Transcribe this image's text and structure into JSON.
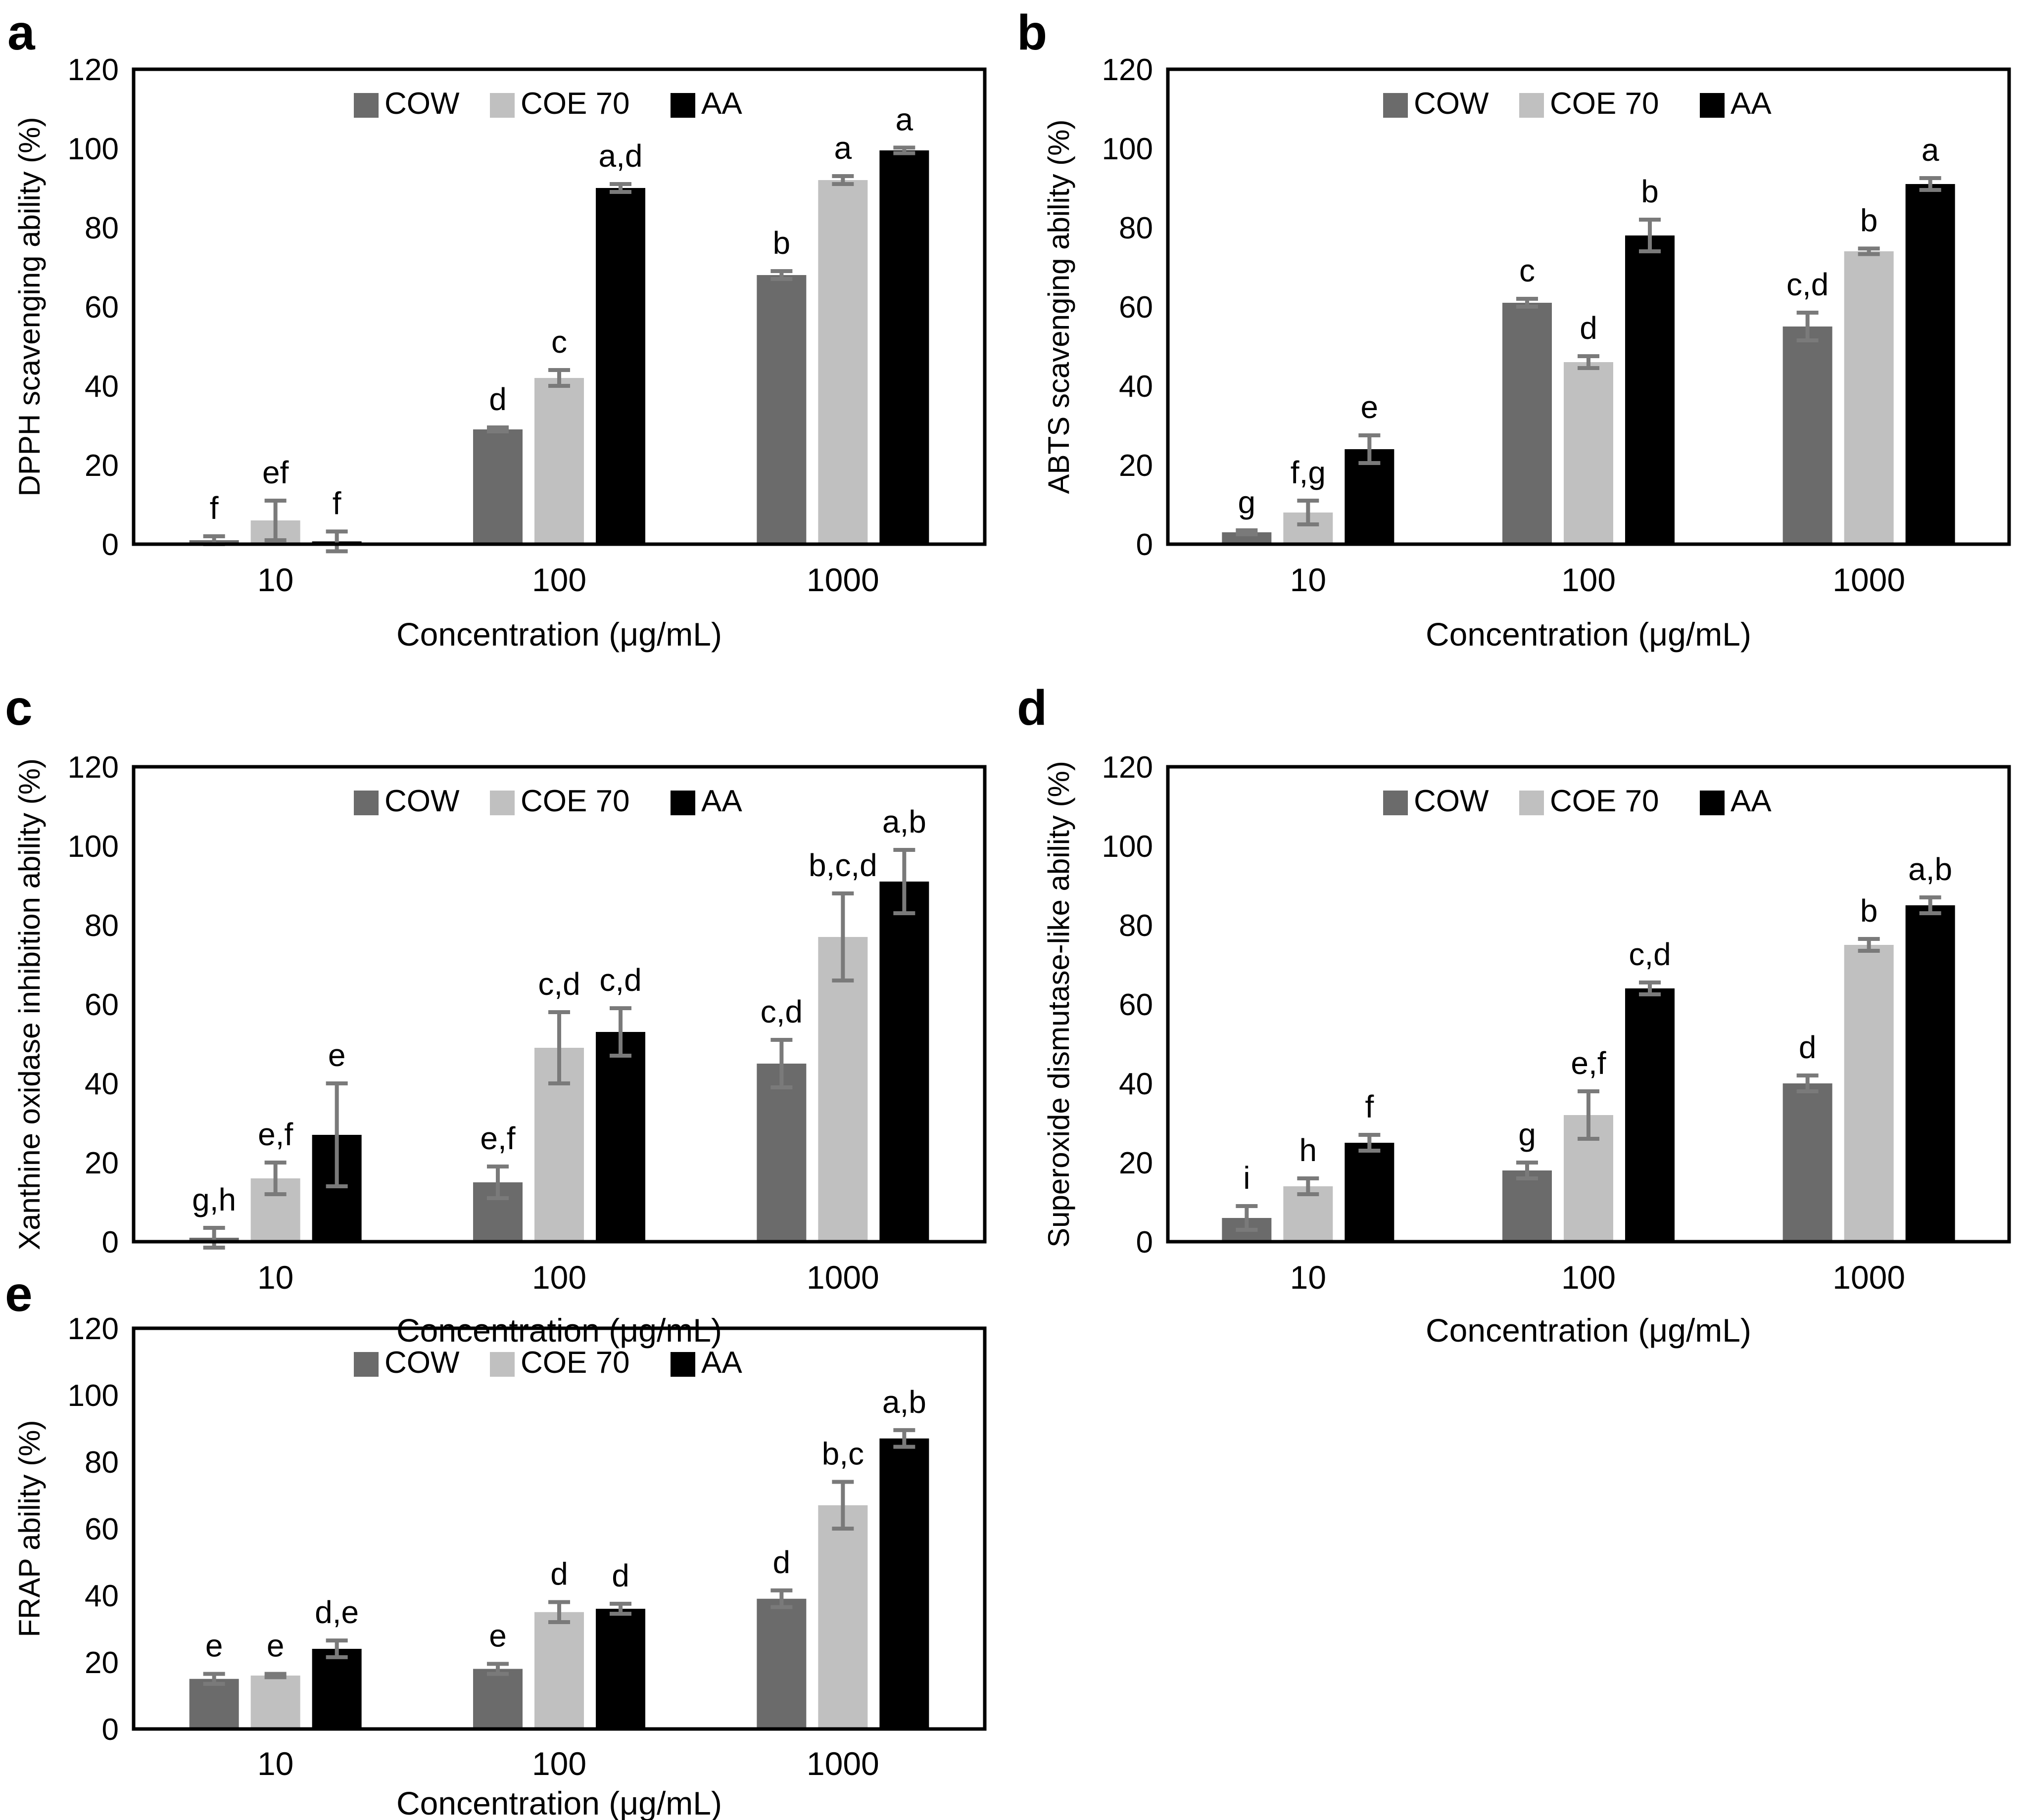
{
  "figure_title": "",
  "series_legend": {
    "position": "top-center-inside",
    "items": [
      {
        "label": "COW",
        "color": "#6b6b6b"
      },
      {
        "label": "COE 70",
        "color": "#c0c0c0"
      },
      {
        "label": "AA",
        "color": "#000000"
      }
    ]
  },
  "error_bar_color": "#7a7a7a",
  "chart_data": [
    {
      "panel": "a",
      "type": "bar",
      "ylabel": "DPPH scavenging ability (%)",
      "xlabel": "Concentration (μg/mL)",
      "categories": [
        "10",
        "100",
        "1000"
      ],
      "ylim": [
        0,
        120
      ],
      "yticks": [
        0,
        20,
        40,
        60,
        80,
        100,
        120
      ],
      "grid": false,
      "legend_position": "top-center",
      "series": [
        {
          "name": "COW",
          "color": "#6b6b6b",
          "values": [
            1,
            29,
            68
          ],
          "errors": [
            1,
            0.5,
            1
          ],
          "letters": [
            "f",
            "d",
            "b"
          ]
        },
        {
          "name": "COE 70",
          "color": "#c0c0c0",
          "values": [
            6,
            42,
            92
          ],
          "errors": [
            5,
            2,
            1
          ],
          "letters": [
            "ef",
            "c",
            "a"
          ]
        },
        {
          "name": "AA",
          "color": "#000000",
          "values": [
            0.7,
            90,
            99.5
          ],
          "errors": [
            2.5,
            1,
            0.7
          ],
          "letters": [
            "f",
            "a,d",
            "a"
          ]
        }
      ]
    },
    {
      "panel": "b",
      "type": "bar",
      "ylabel": "ABTS scavenging ability (%)",
      "xlabel": "Concentration (μg/mL)",
      "categories": [
        "10",
        "100",
        "1000"
      ],
      "ylim": [
        0,
        120
      ],
      "yticks": [
        0,
        20,
        40,
        60,
        80,
        100,
        120
      ],
      "grid": false,
      "legend_position": "top-center",
      "series": [
        {
          "name": "COW",
          "color": "#6b6b6b",
          "values": [
            3,
            61,
            55
          ],
          "errors": [
            0.5,
            1,
            3.5
          ],
          "letters": [
            "g",
            "c",
            "c,d"
          ]
        },
        {
          "name": "COE 70",
          "color": "#c0c0c0",
          "values": [
            8,
            46,
            74
          ],
          "errors": [
            3,
            1.5,
            0.7
          ],
          "letters": [
            "f,g",
            "d",
            "b"
          ]
        },
        {
          "name": "AA",
          "color": "#000000",
          "values": [
            24,
            78,
            91
          ],
          "errors": [
            3.5,
            4,
            1.5
          ],
          "letters": [
            "e",
            "b",
            "a"
          ]
        }
      ]
    },
    {
      "panel": "c",
      "type": "bar",
      "ylabel": "Xanthine oxidase inhibition ability (%)",
      "xlabel": "Concentration (μg/mL)",
      "categories": [
        "10",
        "100",
        "1000"
      ],
      "ylim": [
        0,
        120
      ],
      "yticks": [
        0,
        20,
        40,
        60,
        80,
        100,
        120
      ],
      "grid": false,
      "legend_position": "top-center",
      "series": [
        {
          "name": "COW",
          "color": "#6b6b6b",
          "values": [
            1,
            15,
            45
          ],
          "errors": [
            2.5,
            4,
            6
          ],
          "letters": [
            "g,h",
            "e,f",
            "c,d"
          ]
        },
        {
          "name": "COE 70",
          "color": "#c0c0c0",
          "values": [
            16,
            49,
            77
          ],
          "errors": [
            4,
            9,
            11
          ],
          "letters": [
            "e,f",
            "c,d",
            "b,c,d"
          ]
        },
        {
          "name": "AA",
          "color": "#000000",
          "values": [
            27,
            53,
            91
          ],
          "errors": [
            13,
            6,
            8
          ],
          "letters": [
            "e",
            "c,d",
            "a,b"
          ]
        }
      ]
    },
    {
      "panel": "d",
      "type": "bar",
      "ylabel": "Superoxide dismutase-like ability (%)",
      "xlabel": "Concentration (μg/mL)",
      "categories": [
        "10",
        "100",
        "1000"
      ],
      "ylim": [
        0,
        120
      ],
      "yticks": [
        0,
        20,
        40,
        60,
        80,
        100,
        120
      ],
      "grid": false,
      "legend_position": "top-center",
      "series": [
        {
          "name": "COW",
          "color": "#6b6b6b",
          "values": [
            6,
            18,
            40
          ],
          "errors": [
            3,
            2,
            2
          ],
          "letters": [
            "i",
            "g",
            "d"
          ]
        },
        {
          "name": "COE 70",
          "color": "#c0c0c0",
          "values": [
            14,
            32,
            75
          ],
          "errors": [
            2,
            6,
            1.5
          ],
          "letters": [
            "h",
            "e,f",
            "b"
          ]
        },
        {
          "name": "AA",
          "color": "#000000",
          "values": [
            25,
            64,
            85
          ],
          "errors": [
            2,
            1.5,
            2
          ],
          "letters": [
            "f",
            "c,d",
            "a,b"
          ]
        }
      ]
    },
    {
      "panel": "e",
      "type": "bar",
      "ylabel": "FRAP ability (%)",
      "xlabel": "Concentration (μg/mL)",
      "categories": [
        "10",
        "100",
        "1000"
      ],
      "ylim": [
        0,
        120
      ],
      "yticks": [
        0,
        20,
        40,
        60,
        80,
        100,
        120
      ],
      "grid": false,
      "legend_position": "top-center",
      "series": [
        {
          "name": "COW",
          "color": "#6b6b6b",
          "values": [
            15,
            18,
            39
          ],
          "errors": [
            1.5,
            1.5,
            2.5
          ],
          "letters": [
            "e",
            "e",
            "d"
          ]
        },
        {
          "name": "COE 70",
          "color": "#c0c0c0",
          "values": [
            16,
            35,
            67
          ],
          "errors": [
            0.5,
            3,
            7
          ],
          "letters": [
            "e",
            "d",
            "b,c"
          ]
        },
        {
          "name": "AA",
          "color": "#000000",
          "values": [
            24,
            36,
            87
          ],
          "errors": [
            2.5,
            1.5,
            2.5
          ],
          "letters": [
            "d,e",
            "d",
            "a,b"
          ]
        }
      ]
    }
  ]
}
